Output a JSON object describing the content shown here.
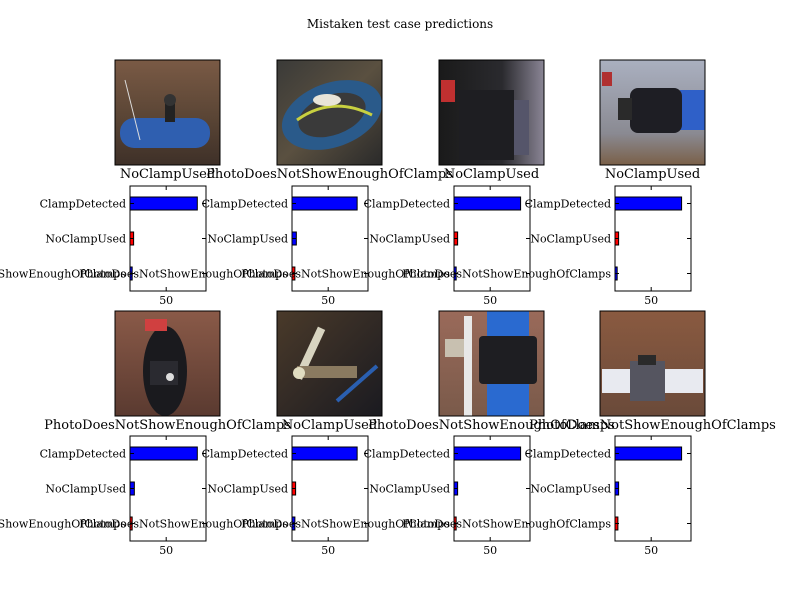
{
  "figure": {
    "title": "Mistaken test case predictions"
  },
  "chart_data": {
    "type": "bar",
    "orientation": "horizontal",
    "title": "Mistaken test case predictions",
    "categories": [
      "ClampDetected",
      "NoClampUsed",
      "PhotoDoesNotShowEnoughOfClamps"
    ],
    "xtick": 50,
    "xlim": [
      0,
      105
    ],
    "grid": false,
    "panels": [
      {
        "image_label": "NoClampUsed",
        "image_scene": "blue pipe in dirt trench with valve",
        "values": [
          93,
          5,
          3
        ],
        "colors": [
          "#0000ff",
          "#ff0000",
          "#0000ff"
        ]
      },
      {
        "image_label": "PhotoDoesNotShowEnoughOfClamps",
        "image_scene": "blurry close-up of wrapped pipe",
        "values": [
          90,
          6,
          4
        ],
        "colors": [
          "#0000ff",
          "#0000ff",
          "#ff0000"
        ]
      },
      {
        "image_label": "NoClampUsed",
        "image_scene": "dark pipe joint close-up",
        "values": [
          92,
          5,
          3
        ],
        "colors": [
          "#0000ff",
          "#ff0000",
          "#0000ff"
        ]
      },
      {
        "image_label": "NoClampUsed",
        "image_scene": "black clamp on blue pipe",
        "values": [
          92,
          5,
          3
        ],
        "colors": [
          "#0000ff",
          "#ff0000",
          "#0000ff"
        ]
      },
      {
        "image_label": "PhotoDoesNotShowEnoughOfClamps",
        "image_scene": "black pipe fitting in red soil",
        "values": [
          93,
          6,
          3
        ],
        "colors": [
          "#0000ff",
          "#0000ff",
          "#ff0000"
        ]
      },
      {
        "image_label": "NoClampUsed",
        "image_scene": "metal pipes and valve in trench",
        "values": [
          90,
          5,
          4
        ],
        "colors": [
          "#0000ff",
          "#ff0000",
          "#0000ff"
        ]
      },
      {
        "image_label": "PhotoDoesNotShowEnoughOfClamps",
        "image_scene": "blue pipe with black coupling",
        "values": [
          92,
          5,
          3
        ],
        "colors": [
          "#0000ff",
          "#0000ff",
          "#ff0000"
        ]
      },
      {
        "image_label": "PhotoDoesNotShowEnoughOfClamps",
        "image_scene": "white pipe with clamp in brown dirt",
        "values": [
          92,
          5,
          4
        ],
        "colors": [
          "#0000ff",
          "#0000ff",
          "#ff0000"
        ]
      }
    ]
  }
}
